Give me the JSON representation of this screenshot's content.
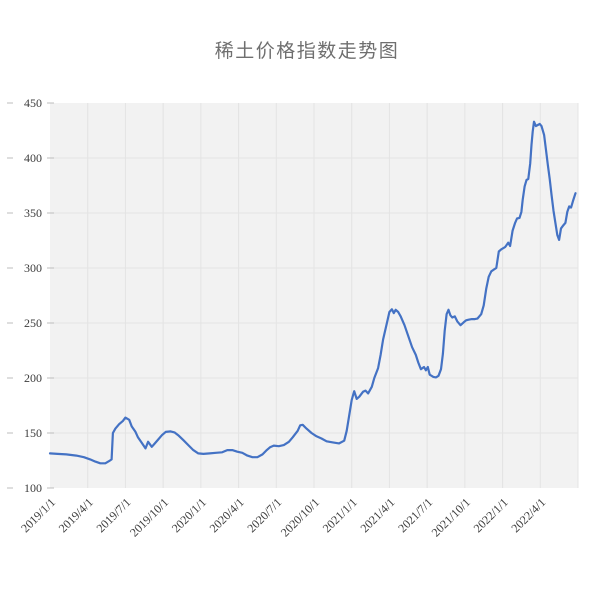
{
  "chart_data": {
    "type": "line",
    "title": "稀土价格指数走势图",
    "xlabel": "",
    "ylabel": "",
    "x_unit": "months since 2019/1/1",
    "x_range": [
      0,
      42
    ],
    "y_range": [
      100,
      450
    ],
    "y_ticks": [
      100,
      150,
      200,
      250,
      300,
      350,
      400,
      450
    ],
    "x_ticks": [
      {
        "m": 0,
        "label": "2019/1/1"
      },
      {
        "m": 3,
        "label": "2019/4/1"
      },
      {
        "m": 6,
        "label": "2019/7/1"
      },
      {
        "m": 9,
        "label": "2019/10/1"
      },
      {
        "m": 12,
        "label": "2020/1/1"
      },
      {
        "m": 15,
        "label": "2020/4/1"
      },
      {
        "m": 18,
        "label": "2020/7/1"
      },
      {
        "m": 21,
        "label": "2020/10/1"
      },
      {
        "m": 24,
        "label": "2021/1/1"
      },
      {
        "m": 27,
        "label": "2021/4/1"
      },
      {
        "m": 30,
        "label": "2021/7/1"
      },
      {
        "m": 33,
        "label": "2021/10/1"
      },
      {
        "m": 36,
        "label": "2022/1/1"
      },
      {
        "m": 39,
        "label": "2022/4/1"
      }
    ],
    "grid": true,
    "legend_position": "none",
    "colors": {
      "line": "#4472c4",
      "plot_background": "#f2f2f2",
      "gridline": "#e4e4e4",
      "tick_mark": "#bcbcbc",
      "axis_text": "#3d3d3d",
      "title_text": "#6f6f6f"
    },
    "series": [
      {
        "name": "稀土价格指数",
        "color": "#4472c4",
        "points": [
          [
            0.0,
            131.5
          ],
          [
            0.6,
            131
          ],
          [
            1.3,
            130.5
          ],
          [
            2.1,
            129.5
          ],
          [
            2.7,
            128
          ],
          [
            3.2,
            126
          ],
          [
            3.6,
            124
          ],
          [
            4.0,
            122.5
          ],
          [
            4.4,
            122.5
          ],
          [
            4.7,
            124.5
          ],
          [
            4.9,
            126
          ],
          [
            5.0,
            150
          ],
          [
            5.2,
            154
          ],
          [
            5.5,
            158
          ],
          [
            5.8,
            161
          ],
          [
            6.0,
            164
          ],
          [
            6.3,
            162
          ],
          [
            6.5,
            156
          ],
          [
            6.8,
            151
          ],
          [
            7.0,
            146
          ],
          [
            7.3,
            141
          ],
          [
            7.6,
            136
          ],
          [
            7.8,
            142
          ],
          [
            8.1,
            137.5
          ],
          [
            8.3,
            140
          ],
          [
            8.6,
            144
          ],
          [
            8.9,
            148
          ],
          [
            9.2,
            151
          ],
          [
            9.6,
            151.5
          ],
          [
            9.9,
            150.5
          ],
          [
            10.2,
            148
          ],
          [
            10.6,
            143.5
          ],
          [
            11.0,
            139
          ],
          [
            11.4,
            134.5
          ],
          [
            11.8,
            131.5
          ],
          [
            12.2,
            131
          ],
          [
            12.7,
            131.5
          ],
          [
            13.2,
            132
          ],
          [
            13.7,
            132.5
          ],
          [
            14.1,
            134.5
          ],
          [
            14.5,
            134.5
          ],
          [
            14.9,
            133
          ],
          [
            15.3,
            132
          ],
          [
            15.7,
            129.5
          ],
          [
            16.1,
            128
          ],
          [
            16.5,
            128
          ],
          [
            16.9,
            130.5
          ],
          [
            17.2,
            134
          ],
          [
            17.5,
            137
          ],
          [
            17.8,
            138.5
          ],
          [
            18.2,
            138
          ],
          [
            18.6,
            139
          ],
          [
            19.0,
            142
          ],
          [
            19.3,
            146
          ],
          [
            19.7,
            152
          ],
          [
            19.9,
            157
          ],
          [
            20.1,
            157.5
          ],
          [
            20.4,
            154
          ],
          [
            20.8,
            150
          ],
          [
            21.2,
            147
          ],
          [
            21.6,
            145
          ],
          [
            22.0,
            142.5
          ],
          [
            22.5,
            141.5
          ],
          [
            23.0,
            140.5
          ],
          [
            23.4,
            143
          ],
          [
            23.6,
            152
          ],
          [
            23.8,
            166
          ],
          [
            24.0,
            180
          ],
          [
            24.2,
            188
          ],
          [
            24.4,
            181
          ],
          [
            24.6,
            183
          ],
          [
            24.9,
            187.5
          ],
          [
            25.1,
            188.5
          ],
          [
            25.3,
            186
          ],
          [
            25.6,
            192
          ],
          [
            25.8,
            200
          ],
          [
            26.1,
            209
          ],
          [
            26.3,
            221
          ],
          [
            26.5,
            235
          ],
          [
            26.8,
            250
          ],
          [
            27.0,
            260
          ],
          [
            27.2,
            262.5
          ],
          [
            27.35,
            259
          ],
          [
            27.5,
            262
          ],
          [
            27.7,
            260
          ],
          [
            27.9,
            256
          ],
          [
            28.2,
            248
          ],
          [
            28.5,
            238
          ],
          [
            28.8,
            228
          ],
          [
            29.1,
            221
          ],
          [
            29.3,
            214
          ],
          [
            29.5,
            208
          ],
          [
            29.75,
            210
          ],
          [
            29.9,
            207
          ],
          [
            30.05,
            210
          ],
          [
            30.2,
            203
          ],
          [
            30.5,
            201
          ],
          [
            30.7,
            200.5
          ],
          [
            30.9,
            202
          ],
          [
            31.1,
            208
          ],
          [
            31.25,
            222
          ],
          [
            31.4,
            243
          ],
          [
            31.55,
            258
          ],
          [
            31.7,
            262
          ],
          [
            31.85,
            257
          ],
          [
            32.0,
            255
          ],
          [
            32.2,
            256
          ],
          [
            32.4,
            251.5
          ],
          [
            32.65,
            248
          ],
          [
            32.9,
            250.5
          ],
          [
            33.1,
            252.5
          ],
          [
            33.3,
            253
          ],
          [
            33.55,
            253.5
          ],
          [
            33.8,
            253.5
          ],
          [
            34.0,
            254
          ],
          [
            34.3,
            258
          ],
          [
            34.5,
            266
          ],
          [
            34.7,
            281
          ],
          [
            34.9,
            292
          ],
          [
            35.1,
            297
          ],
          [
            35.3,
            298.5
          ],
          [
            35.5,
            300
          ],
          [
            35.7,
            315
          ],
          [
            35.9,
            317
          ],
          [
            36.2,
            319
          ],
          [
            36.45,
            323
          ],
          [
            36.6,
            320
          ],
          [
            36.8,
            334
          ],
          [
            37.0,
            341
          ],
          [
            37.15,
            345
          ],
          [
            37.35,
            345.5
          ],
          [
            37.5,
            351
          ],
          [
            37.6,
            362
          ],
          [
            37.75,
            374
          ],
          [
            37.9,
            380
          ],
          [
            38.05,
            381
          ],
          [
            38.2,
            395
          ],
          [
            38.3,
            412
          ],
          [
            38.4,
            424
          ],
          [
            38.5,
            433
          ],
          [
            38.65,
            429
          ],
          [
            38.8,
            430
          ],
          [
            38.95,
            431
          ],
          [
            39.1,
            429
          ],
          [
            39.3,
            421
          ],
          [
            39.45,
            408
          ],
          [
            39.6,
            394
          ],
          [
            39.75,
            381
          ],
          [
            39.9,
            366
          ],
          [
            40.05,
            352
          ],
          [
            40.2,
            341
          ],
          [
            40.35,
            330
          ],
          [
            40.5,
            325.5
          ],
          [
            40.65,
            336
          ],
          [
            40.85,
            339
          ],
          [
            41.0,
            341
          ],
          [
            41.15,
            351
          ],
          [
            41.3,
            356
          ],
          [
            41.45,
            355
          ],
          [
            41.6,
            361
          ],
          [
            41.8,
            368
          ]
        ]
      }
    ]
  }
}
